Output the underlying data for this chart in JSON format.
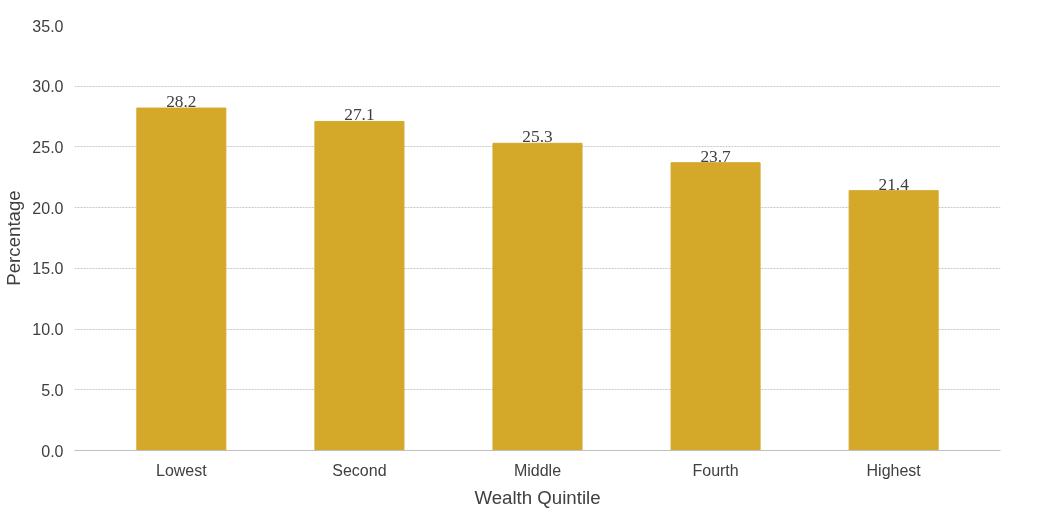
{
  "chart_data": {
    "type": "bar",
    "xlabel": "Wealth Quintile",
    "ylabel": "Percentage",
    "categories": [
      "Lowest",
      "Second",
      "Middle",
      "Fourth",
      "Highest"
    ],
    "values": [
      28.2,
      27.1,
      25.3,
      23.7,
      21.4
    ],
    "color": "#d4a92a",
    "ylim": [
      0,
      35
    ],
    "yticks": [
      {
        "value": 0,
        "label": "0.0"
      },
      {
        "value": 5,
        "label": "5.0"
      },
      {
        "value": 10,
        "label": "10.0"
      },
      {
        "value": 15,
        "label": "15.0"
      },
      {
        "value": 20,
        "label": "20.0"
      },
      {
        "value": 25,
        "label": "25.0"
      },
      {
        "value": 30,
        "label": "30.0"
      },
      {
        "value": 35,
        "label": "35.0"
      }
    ],
    "grid": "y",
    "data_labels": true
  }
}
